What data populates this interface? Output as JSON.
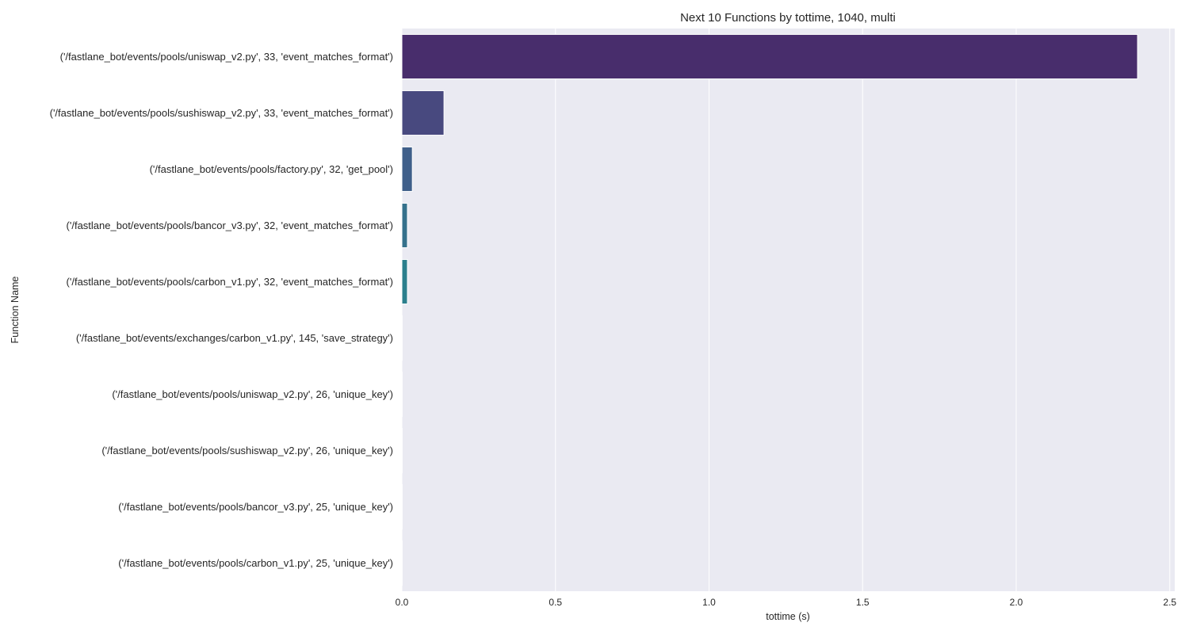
{
  "chart_data": {
    "type": "bar",
    "orientation": "horizontal",
    "title": "Next 10 Functions by tottime, 1040, multi",
    "xlabel": "tottime (s)",
    "ylabel": "Function Name",
    "xlim": [
      0,
      2.52
    ],
    "xticks": [
      "0.0",
      "0.5",
      "1.0",
      "1.5",
      "2.0",
      "2.5"
    ],
    "grid": true,
    "categories": [
      "('/fastlane_bot/events/pools/uniswap_v2.py', 33, 'event_matches_format')",
      "('/fastlane_bot/events/pools/sushiswap_v2.py', 33, 'event_matches_format')",
      "('/fastlane_bot/events/pools/factory.py', 32, 'get_pool')",
      "('/fastlane_bot/events/pools/bancor_v3.py', 32, 'event_matches_format')",
      "('/fastlane_bot/events/pools/carbon_v1.py', 32, 'event_matches_format')",
      "('/fastlane_bot/events/exchanges/carbon_v1.py', 145, 'save_strategy')",
      "('/fastlane_bot/events/pools/uniswap_v2.py', 26, 'unique_key')",
      "('/fastlane_bot/events/pools/sushiswap_v2.py', 26, 'unique_key')",
      "('/fastlane_bot/events/pools/bancor_v3.py', 25, 'unique_key')",
      "('/fastlane_bot/events/pools/carbon_v1.py', 25, 'unique_key')"
    ],
    "values": [
      2.395,
      0.137,
      0.034,
      0.018,
      0.018,
      0.001,
      0.001,
      0.001,
      0.001,
      0.001
    ],
    "colors": [
      "#482d6c",
      "#48497f",
      "#3f5f8a",
      "#35718c",
      "#2b7f8d",
      "#20938c",
      "#22a385",
      "#3bb673",
      "#66c65c",
      "#9ed73d"
    ]
  }
}
